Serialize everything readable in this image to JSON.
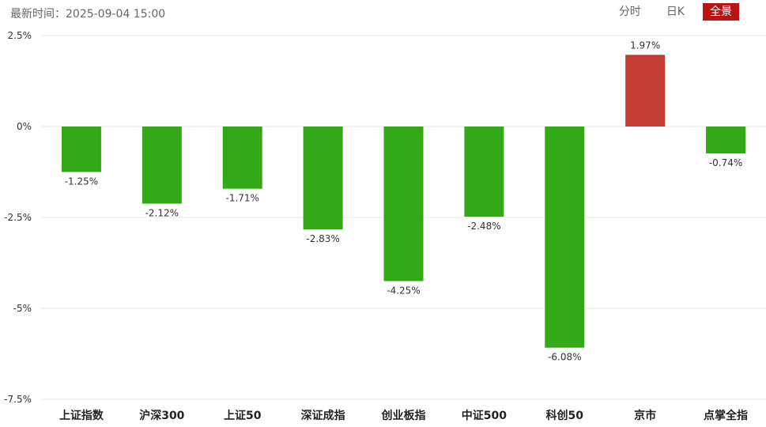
{
  "header": {
    "update_time": "最新时间：2025-09-04 15:00",
    "tabs": [
      {
        "label": "分时",
        "active": false
      },
      {
        "label": "日K",
        "active": false
      },
      {
        "label": "全景",
        "active": true
      }
    ]
  },
  "colors": {
    "up": "#c23a30",
    "down": "#34a917",
    "tab_active": "#b81414",
    "grid": "#e8e8e8"
  },
  "chart_data": {
    "type": "bar",
    "title": "",
    "xlabel": "",
    "ylabel": "",
    "ylim": [
      -7.5,
      2.5
    ],
    "yticks": [
      2.5,
      0,
      -2.5,
      -5,
      -7.5
    ],
    "ytick_labels": [
      "2.5%",
      "0%",
      "-2.5%",
      "-5%",
      "-7.5%"
    ],
    "grid": true,
    "categories": [
      "上证指数",
      "沪深300",
      "上证50",
      "深证成指",
      "创业板指",
      "中证500",
      "科创50",
      "京市",
      "点掌全指"
    ],
    "values": [
      -1.25,
      -2.12,
      -1.71,
      -2.83,
      -4.25,
      -2.48,
      -6.08,
      1.97,
      -0.74
    ],
    "value_labels": [
      "-1.25%",
      "-2.12%",
      "-1.71%",
      "-2.83%",
      "-4.25%",
      "-2.48%",
      "-6.08%",
      "1.97%",
      "-0.74%"
    ]
  }
}
